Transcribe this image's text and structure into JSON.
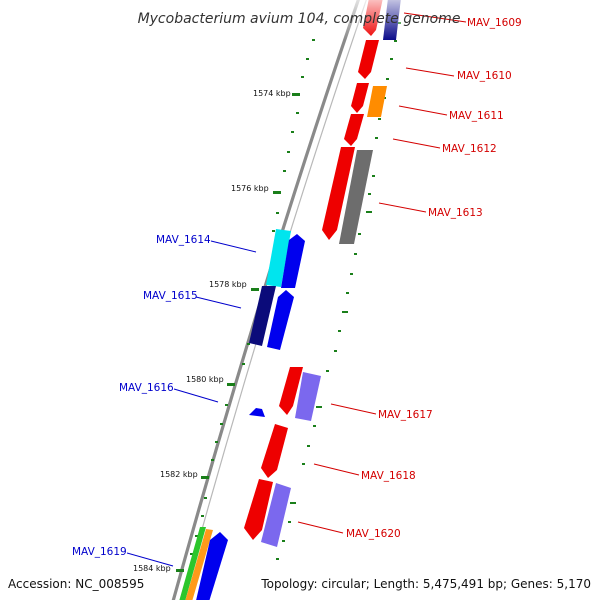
{
  "title": "Mycobacterium avium 104, complete genome",
  "footer": {
    "accession": "Accession: NC_008595",
    "summary": "Topology: circular; Length: 5,475,491 bp; Genes: 5,170"
  },
  "colors": {
    "plus_strand_label": "#d40000",
    "minus_strand_label": "#0000cc",
    "tick": "#1a7f1a",
    "backbone": "#888888"
  },
  "scale_ticks": [
    "1574 kbp",
    "1576 kbp",
    "1578 kbp",
    "1580 kbp",
    "1582 kbp",
    "1584 kbp"
  ],
  "genes_plus": [
    "MAV_1609",
    "MAV_1610",
    "MAV_1611",
    "MAV_1612",
    "MAV_1613",
    "MAV_1617",
    "MAV_1618",
    "MAV_1620"
  ],
  "genes_minus": [
    "MAV_1614",
    "MAV_1615",
    "MAV_1616",
    "MAV_1619"
  ]
}
